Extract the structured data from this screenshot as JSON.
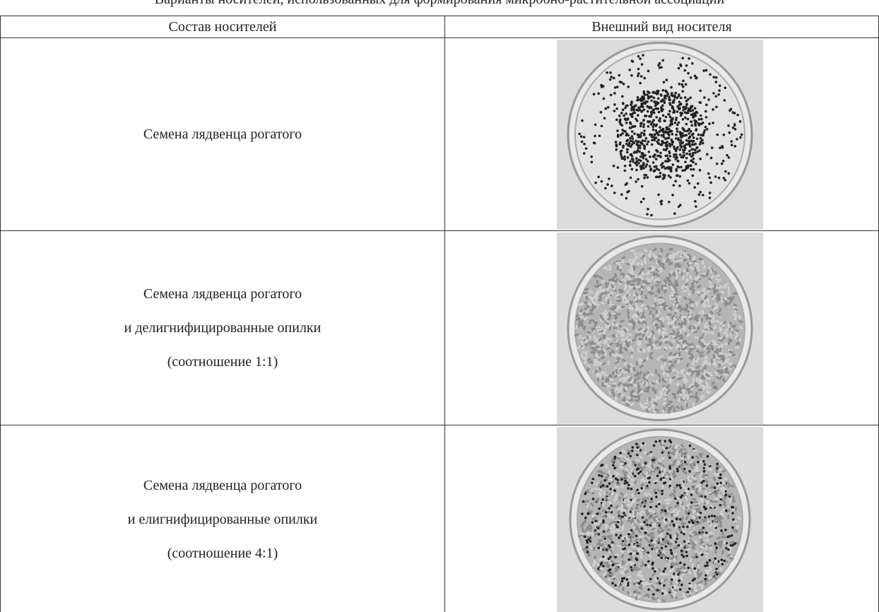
{
  "caption": "Варианты носителей, использованных для формирования микробно-растительной ассоциации",
  "table": {
    "header": [
      "Состав носителей",
      "Внешний вид носителя"
    ],
    "rows": [
      {
        "lines": [
          "Семена лядвенца рогатого"
        ]
      },
      {
        "lines": [
          "Семена лядвенца рогатого",
          "и делигнифицированные опилки",
          "(соотношение 1:1)"
        ]
      },
      {
        "lines": [
          "Семена лядвенца рогатого",
          "и елигнифицированные опилки",
          "(соотношение 4:1)"
        ]
      }
    ]
  }
}
